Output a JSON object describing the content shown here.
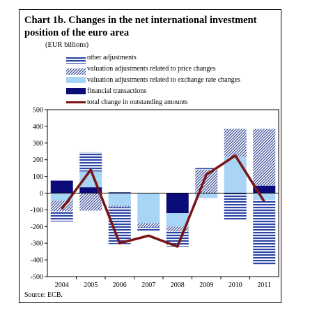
{
  "title": "Chart 1b. Changes in the net international investment position of the euro area",
  "unit": "(EUR billions)",
  "source": "Source: ECB.",
  "legend": [
    {
      "key": "other",
      "label": "other adjustments"
    },
    {
      "key": "price",
      "label": "valuation adjustments related to price changes"
    },
    {
      "key": "fx",
      "label": "valuation adjustments related to exchange rate changes"
    },
    {
      "key": "fin",
      "label": "financial transactions"
    },
    {
      "key": "total",
      "label": "total change in outstanding amounts"
    }
  ],
  "colors": {
    "other": "#2c44a6",
    "price": "#3d4f9a",
    "fx": "#a8d4f5",
    "fin": "#0b0b7a",
    "total": "#7a1414"
  },
  "chart_data": {
    "type": "bar",
    "stacked": true,
    "categories": [
      "2004",
      "2005",
      "2006",
      "2007",
      "2008",
      "2009",
      "2010",
      "2011"
    ],
    "ylim": [
      -500,
      500
    ],
    "yticks": [
      -500,
      -400,
      -300,
      -200,
      -100,
      0,
      100,
      200,
      300,
      400,
      500
    ],
    "series": [
      {
        "key": "fin",
        "name": "financial transactions",
        "values": [
          75,
          35,
          5,
          0,
          -120,
          0,
          0,
          45
        ]
      },
      {
        "key": "fx",
        "name": "valuation adjustments related to exchange rate changes",
        "values": [
          -45,
          95,
          -75,
          -180,
          -80,
          -30,
          215,
          -40
        ]
      },
      {
        "key": "price",
        "name": "valuation adjustments related to price changes",
        "values": [
          -65,
          -105,
          -10,
          -25,
          -30,
          140,
          170,
          340
        ]
      },
      {
        "key": "other",
        "name": "other adjustments",
        "values": [
          -60,
          115,
          -220,
          -20,
          -90,
          10,
          -160,
          -390
        ]
      }
    ],
    "line": {
      "key": "total",
      "name": "total change in outstanding amounts",
      "values": [
        -95,
        140,
        -300,
        -255,
        -320,
        110,
        225,
        -50
      ]
    }
  }
}
